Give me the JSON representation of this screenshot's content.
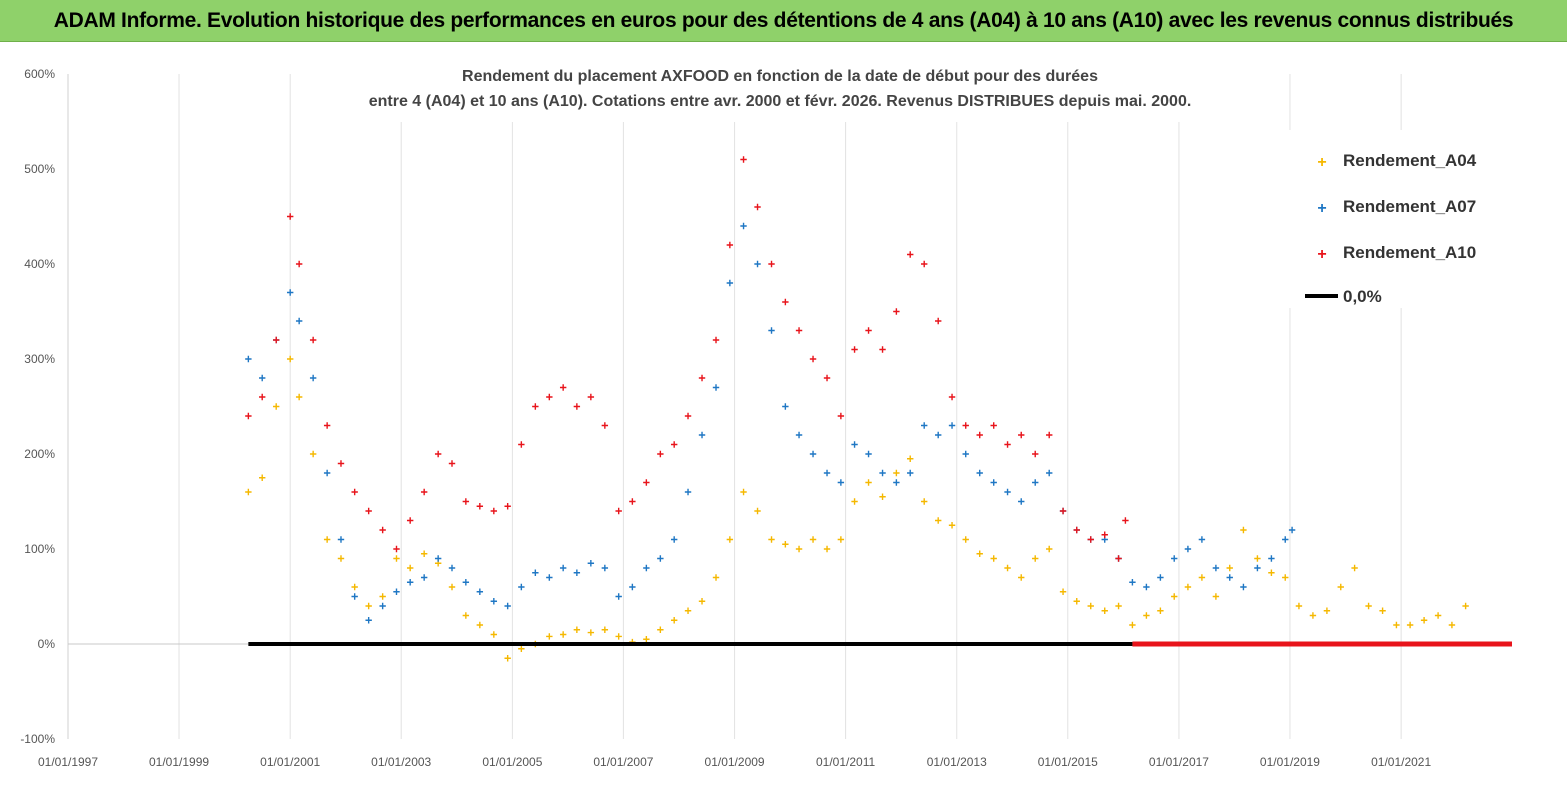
{
  "header": {
    "title": "ADAM Informe. Evolution historique des performances en euros pour des détentions de 4 ans (A04) à 10 ans (A10) avec les revenus connus distribués"
  },
  "chart_data": {
    "type": "scatter",
    "title_line1": "Rendement du placement AXFOOD en fonction de la date de début pour des durées",
    "title_line2": "entre 4 (A04) et 10 ans (A10).  Cotations entre avr. 2000 et févr. 2026. Revenus DISTRIBUES depuis mai. 2000.",
    "xlabel": "",
    "ylabel": "",
    "x_range": [
      "01/01/1997",
      "31/12/2022"
    ],
    "ylim": [
      -100,
      600
    ],
    "y_ticks": [
      "-100%",
      "0%",
      "100%",
      "200%",
      "300%",
      "400%",
      "500%",
      "600%"
    ],
    "y_tick_values": [
      -100,
      0,
      100,
      200,
      300,
      400,
      500,
      600
    ],
    "x_ticks": [
      "01/01/1997",
      "01/01/1999",
      "01/01/2001",
      "01/01/2003",
      "01/01/2005",
      "01/01/2007",
      "01/01/2009",
      "01/01/2011",
      "01/01/2013",
      "01/01/2015",
      "01/01/2017",
      "01/01/2019",
      "01/01/2021"
    ],
    "grid": "vertical",
    "legend_position": "top-right",
    "series": [
      {
        "name": "Rendement_A04",
        "color": "#f5b800",
        "marker": "cross",
        "points": [
          [
            "2000-04-01",
            160
          ],
          [
            "2000-07-01",
            175
          ],
          [
            "2000-10-01",
            250
          ],
          [
            "2001-01-01",
            300
          ],
          [
            "2001-03-01",
            260
          ],
          [
            "2001-06-01",
            200
          ],
          [
            "2001-09-01",
            110
          ],
          [
            "2001-12-01",
            90
          ],
          [
            "2002-03-01",
            60
          ],
          [
            "2002-06-01",
            40
          ],
          [
            "2002-09-01",
            50
          ],
          [
            "2002-12-01",
            90
          ],
          [
            "2003-03-01",
            80
          ],
          [
            "2003-06-01",
            95
          ],
          [
            "2003-09-01",
            85
          ],
          [
            "2003-12-01",
            60
          ],
          [
            "2004-03-01",
            30
          ],
          [
            "2004-06-01",
            20
          ],
          [
            "2004-09-01",
            10
          ],
          [
            "2004-12-01",
            -15
          ],
          [
            "2005-03-01",
            -5
          ],
          [
            "2005-06-01",
            0
          ],
          [
            "2005-09-01",
            8
          ],
          [
            "2005-12-01",
            10
          ],
          [
            "2006-03-01",
            15
          ],
          [
            "2006-06-01",
            12
          ],
          [
            "2006-09-01",
            15
          ],
          [
            "2006-12-01",
            8
          ],
          [
            "2007-03-01",
            2
          ],
          [
            "2007-06-01",
            5
          ],
          [
            "2007-09-01",
            15
          ],
          [
            "2007-12-01",
            25
          ],
          [
            "2008-03-01",
            35
          ],
          [
            "2008-06-01",
            45
          ],
          [
            "2008-09-01",
            70
          ],
          [
            "2008-12-01",
            110
          ],
          [
            "2009-03-01",
            160
          ],
          [
            "2009-06-01",
            140
          ],
          [
            "2009-09-01",
            110
          ],
          [
            "2009-12-01",
            105
          ],
          [
            "2010-03-01",
            100
          ],
          [
            "2010-06-01",
            110
          ],
          [
            "2010-09-01",
            100
          ],
          [
            "2010-12-01",
            110
          ],
          [
            "2011-03-01",
            150
          ],
          [
            "2011-06-01",
            170
          ],
          [
            "2011-09-01",
            155
          ],
          [
            "2011-12-01",
            180
          ],
          [
            "2012-03-01",
            195
          ],
          [
            "2012-06-01",
            150
          ],
          [
            "2012-09-01",
            130
          ],
          [
            "2012-12-01",
            125
          ],
          [
            "2013-03-01",
            110
          ],
          [
            "2013-06-01",
            95
          ],
          [
            "2013-09-01",
            90
          ],
          [
            "2013-12-01",
            80
          ],
          [
            "2014-03-01",
            70
          ],
          [
            "2014-06-01",
            90
          ],
          [
            "2014-09-01",
            100
          ],
          [
            "2014-12-01",
            55
          ],
          [
            "2015-03-01",
            45
          ],
          [
            "2015-06-01",
            40
          ],
          [
            "2015-09-01",
            35
          ],
          [
            "2015-12-01",
            40
          ],
          [
            "2016-03-01",
            20
          ],
          [
            "2016-06-01",
            30
          ],
          [
            "2016-09-01",
            35
          ],
          [
            "2016-12-01",
            50
          ],
          [
            "2017-03-01",
            60
          ],
          [
            "2017-06-01",
            70
          ],
          [
            "2017-09-01",
            50
          ],
          [
            "2017-12-01",
            80
          ],
          [
            "2018-03-01",
            120
          ],
          [
            "2018-06-01",
            90
          ],
          [
            "2018-09-01",
            75
          ],
          [
            "2018-12-01",
            70
          ],
          [
            "2019-03-01",
            40
          ],
          [
            "2019-06-01",
            30
          ],
          [
            "2019-09-01",
            35
          ],
          [
            "2019-12-01",
            60
          ],
          [
            "2020-03-01",
            80
          ],
          [
            "2020-06-01",
            40
          ],
          [
            "2020-09-01",
            35
          ],
          [
            "2020-12-01",
            20
          ],
          [
            "2021-03-01",
            20
          ],
          [
            "2021-06-01",
            25
          ],
          [
            "2021-09-01",
            30
          ],
          [
            "2021-12-01",
            20
          ],
          [
            "2022-03-01",
            40
          ]
        ]
      },
      {
        "name": "Rendement_A07",
        "color": "#1f77c4",
        "marker": "cross",
        "points": [
          [
            "2000-04-01",
            300
          ],
          [
            "2000-07-01",
            280
          ],
          [
            "2000-10-01",
            320
          ],
          [
            "2001-01-01",
            370
          ],
          [
            "2001-03-01",
            340
          ],
          [
            "2001-06-01",
            280
          ],
          [
            "2001-09-01",
            180
          ],
          [
            "2001-12-01",
            110
          ],
          [
            "2002-03-01",
            50
          ],
          [
            "2002-06-01",
            25
          ],
          [
            "2002-09-01",
            40
          ],
          [
            "2002-12-01",
            55
          ],
          [
            "2003-03-01",
            65
          ],
          [
            "2003-06-01",
            70
          ],
          [
            "2003-09-01",
            90
          ],
          [
            "2003-12-01",
            80
          ],
          [
            "2004-03-01",
            65
          ],
          [
            "2004-06-01",
            55
          ],
          [
            "2004-09-01",
            45
          ],
          [
            "2004-12-01",
            40
          ],
          [
            "2005-03-01",
            60
          ],
          [
            "2005-06-01",
            75
          ],
          [
            "2005-09-01",
            70
          ],
          [
            "2005-12-01",
            80
          ],
          [
            "2006-03-01",
            75
          ],
          [
            "2006-06-01",
            85
          ],
          [
            "2006-09-01",
            80
          ],
          [
            "2006-12-01",
            50
          ],
          [
            "2007-03-01",
            60
          ],
          [
            "2007-06-01",
            80
          ],
          [
            "2007-09-01",
            90
          ],
          [
            "2007-12-01",
            110
          ],
          [
            "2008-03-01",
            160
          ],
          [
            "2008-06-01",
            220
          ],
          [
            "2008-09-01",
            270
          ],
          [
            "2008-12-01",
            380
          ],
          [
            "2009-03-01",
            440
          ],
          [
            "2009-06-01",
            400
          ],
          [
            "2009-09-01",
            330
          ],
          [
            "2009-12-01",
            250
          ],
          [
            "2010-03-01",
            220
          ],
          [
            "2010-06-01",
            200
          ],
          [
            "2010-09-01",
            180
          ],
          [
            "2010-12-01",
            170
          ],
          [
            "2011-03-01",
            210
          ],
          [
            "2011-06-01",
            200
          ],
          [
            "2011-09-01",
            180
          ],
          [
            "2011-12-01",
            170
          ],
          [
            "2012-03-01",
            180
          ],
          [
            "2012-06-01",
            230
          ],
          [
            "2012-09-01",
            220
          ],
          [
            "2012-12-01",
            230
          ],
          [
            "2013-03-01",
            200
          ],
          [
            "2013-06-01",
            180
          ],
          [
            "2013-09-01",
            170
          ],
          [
            "2013-12-01",
            160
          ],
          [
            "2014-03-01",
            150
          ],
          [
            "2014-06-01",
            170
          ],
          [
            "2014-09-01",
            180
          ],
          [
            "2014-12-01",
            140
          ],
          [
            "2015-03-01",
            120
          ],
          [
            "2015-06-01",
            110
          ],
          [
            "2015-09-01",
            110
          ],
          [
            "2015-12-01",
            90
          ],
          [
            "2016-03-01",
            65
          ],
          [
            "2016-06-01",
            60
          ],
          [
            "2016-09-01",
            70
          ],
          [
            "2016-12-01",
            90
          ],
          [
            "2017-03-01",
            100
          ],
          [
            "2017-06-01",
            110
          ],
          [
            "2017-09-01",
            80
          ],
          [
            "2017-12-01",
            70
          ],
          [
            "2018-03-01",
            60
          ],
          [
            "2018-06-01",
            80
          ],
          [
            "2018-09-01",
            90
          ],
          [
            "2018-12-01",
            110
          ],
          [
            "2019-01-15",
            120
          ]
        ]
      },
      {
        "name": "Rendement_A10",
        "color": "#e8141b",
        "marker": "cross",
        "points": [
          [
            "2000-04-01",
            240
          ],
          [
            "2000-07-01",
            260
          ],
          [
            "2000-10-01",
            320
          ],
          [
            "2001-01-01",
            450
          ],
          [
            "2001-03-01",
            400
          ],
          [
            "2001-06-01",
            320
          ],
          [
            "2001-09-01",
            230
          ],
          [
            "2001-12-01",
            190
          ],
          [
            "2002-03-01",
            160
          ],
          [
            "2002-06-01",
            140
          ],
          [
            "2002-09-01",
            120
          ],
          [
            "2002-12-01",
            100
          ],
          [
            "2003-03-01",
            130
          ],
          [
            "2003-06-01",
            160
          ],
          [
            "2003-09-01",
            200
          ],
          [
            "2003-12-01",
            190
          ],
          [
            "2004-03-01",
            150
          ],
          [
            "2004-06-01",
            145
          ],
          [
            "2004-09-01",
            140
          ],
          [
            "2004-12-01",
            145
          ],
          [
            "2005-03-01",
            210
          ],
          [
            "2005-06-01",
            250
          ],
          [
            "2005-09-01",
            260
          ],
          [
            "2005-12-01",
            270
          ],
          [
            "2006-03-01",
            250
          ],
          [
            "2006-06-01",
            260
          ],
          [
            "2006-09-01",
            230
          ],
          [
            "2006-12-01",
            140
          ],
          [
            "2007-03-01",
            150
          ],
          [
            "2007-06-01",
            170
          ],
          [
            "2007-09-01",
            200
          ],
          [
            "2007-12-01",
            210
          ],
          [
            "2008-03-01",
            240
          ],
          [
            "2008-06-01",
            280
          ],
          [
            "2008-09-01",
            320
          ],
          [
            "2008-12-01",
            420
          ],
          [
            "2009-03-01",
            510
          ],
          [
            "2009-06-01",
            460
          ],
          [
            "2009-09-01",
            400
          ],
          [
            "2009-12-01",
            360
          ],
          [
            "2010-03-01",
            330
          ],
          [
            "2010-06-01",
            300
          ],
          [
            "2010-09-01",
            280
          ],
          [
            "2010-12-01",
            240
          ],
          [
            "2011-03-01",
            310
          ],
          [
            "2011-06-01",
            330
          ],
          [
            "2011-09-01",
            310
          ],
          [
            "2011-12-01",
            350
          ],
          [
            "2012-03-01",
            410
          ],
          [
            "2012-06-01",
            400
          ],
          [
            "2012-09-01",
            340
          ],
          [
            "2012-12-01",
            260
          ],
          [
            "2013-03-01",
            230
          ],
          [
            "2013-06-01",
            220
          ],
          [
            "2013-09-01",
            230
          ],
          [
            "2013-12-01",
            210
          ],
          [
            "2014-03-01",
            220
          ],
          [
            "2014-06-01",
            200
          ],
          [
            "2014-09-01",
            220
          ],
          [
            "2014-12-01",
            140
          ],
          [
            "2015-03-01",
            120
          ],
          [
            "2015-06-01",
            110
          ],
          [
            "2015-09-01",
            115
          ],
          [
            "2015-12-01",
            90
          ],
          [
            "2016-01-15",
            130
          ]
        ],
        "zero_run": [
          "2016-03-01",
          "2022-12-31"
        ]
      }
    ],
    "reference_lines": [
      {
        "name": "0,0%",
        "value": 0,
        "color": "#000000",
        "x_start": "2000-04-01",
        "x_end": "2016-03-01"
      }
    ]
  }
}
